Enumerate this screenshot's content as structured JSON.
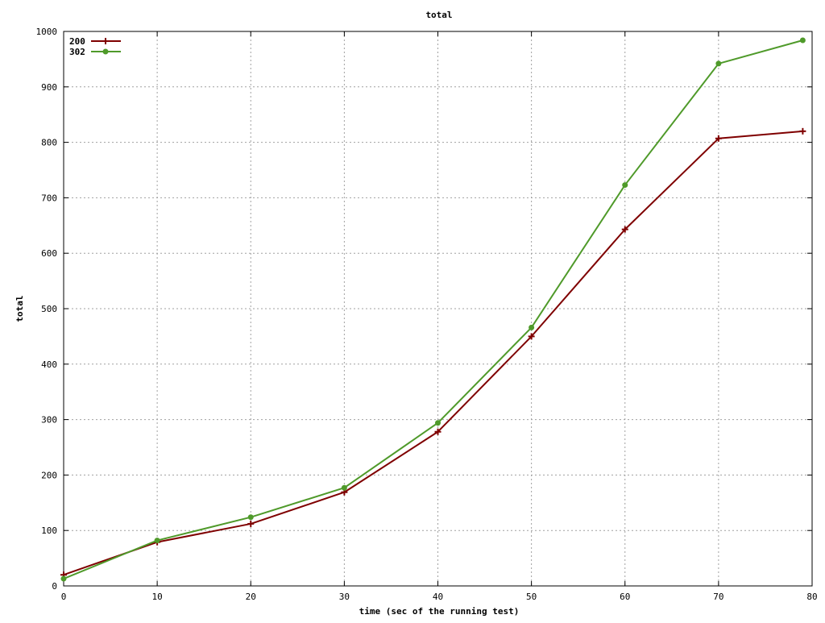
{
  "chart_data": {
    "type": "line",
    "title": "total",
    "xlabel": "time (sec of the running test)",
    "ylabel": "total",
    "xlim": [
      0,
      80
    ],
    "ylim": [
      0,
      1000
    ],
    "x_ticks": [
      "0",
      "10",
      "20",
      "30",
      "40",
      "50",
      "60",
      "70",
      "80"
    ],
    "y_ticks": [
      "0",
      "100",
      "200",
      "300",
      "400",
      "500",
      "600",
      "700",
      "800",
      "900",
      "1000"
    ],
    "grid": true,
    "legend_position": "top-left",
    "x": [
      0,
      10,
      20,
      30,
      40,
      50,
      60,
      70,
      79
    ],
    "series": [
      {
        "name": "200",
        "color": "#7f0000",
        "marker": "plus",
        "values": [
          20,
          79,
          112,
          169,
          278,
          450,
          643,
          807,
          820
        ]
      },
      {
        "name": "302",
        "color": "#4f9a2a",
        "marker": "circle",
        "values": [
          13,
          82,
          124,
          177,
          294,
          466,
          723,
          942,
          984
        ]
      }
    ]
  }
}
